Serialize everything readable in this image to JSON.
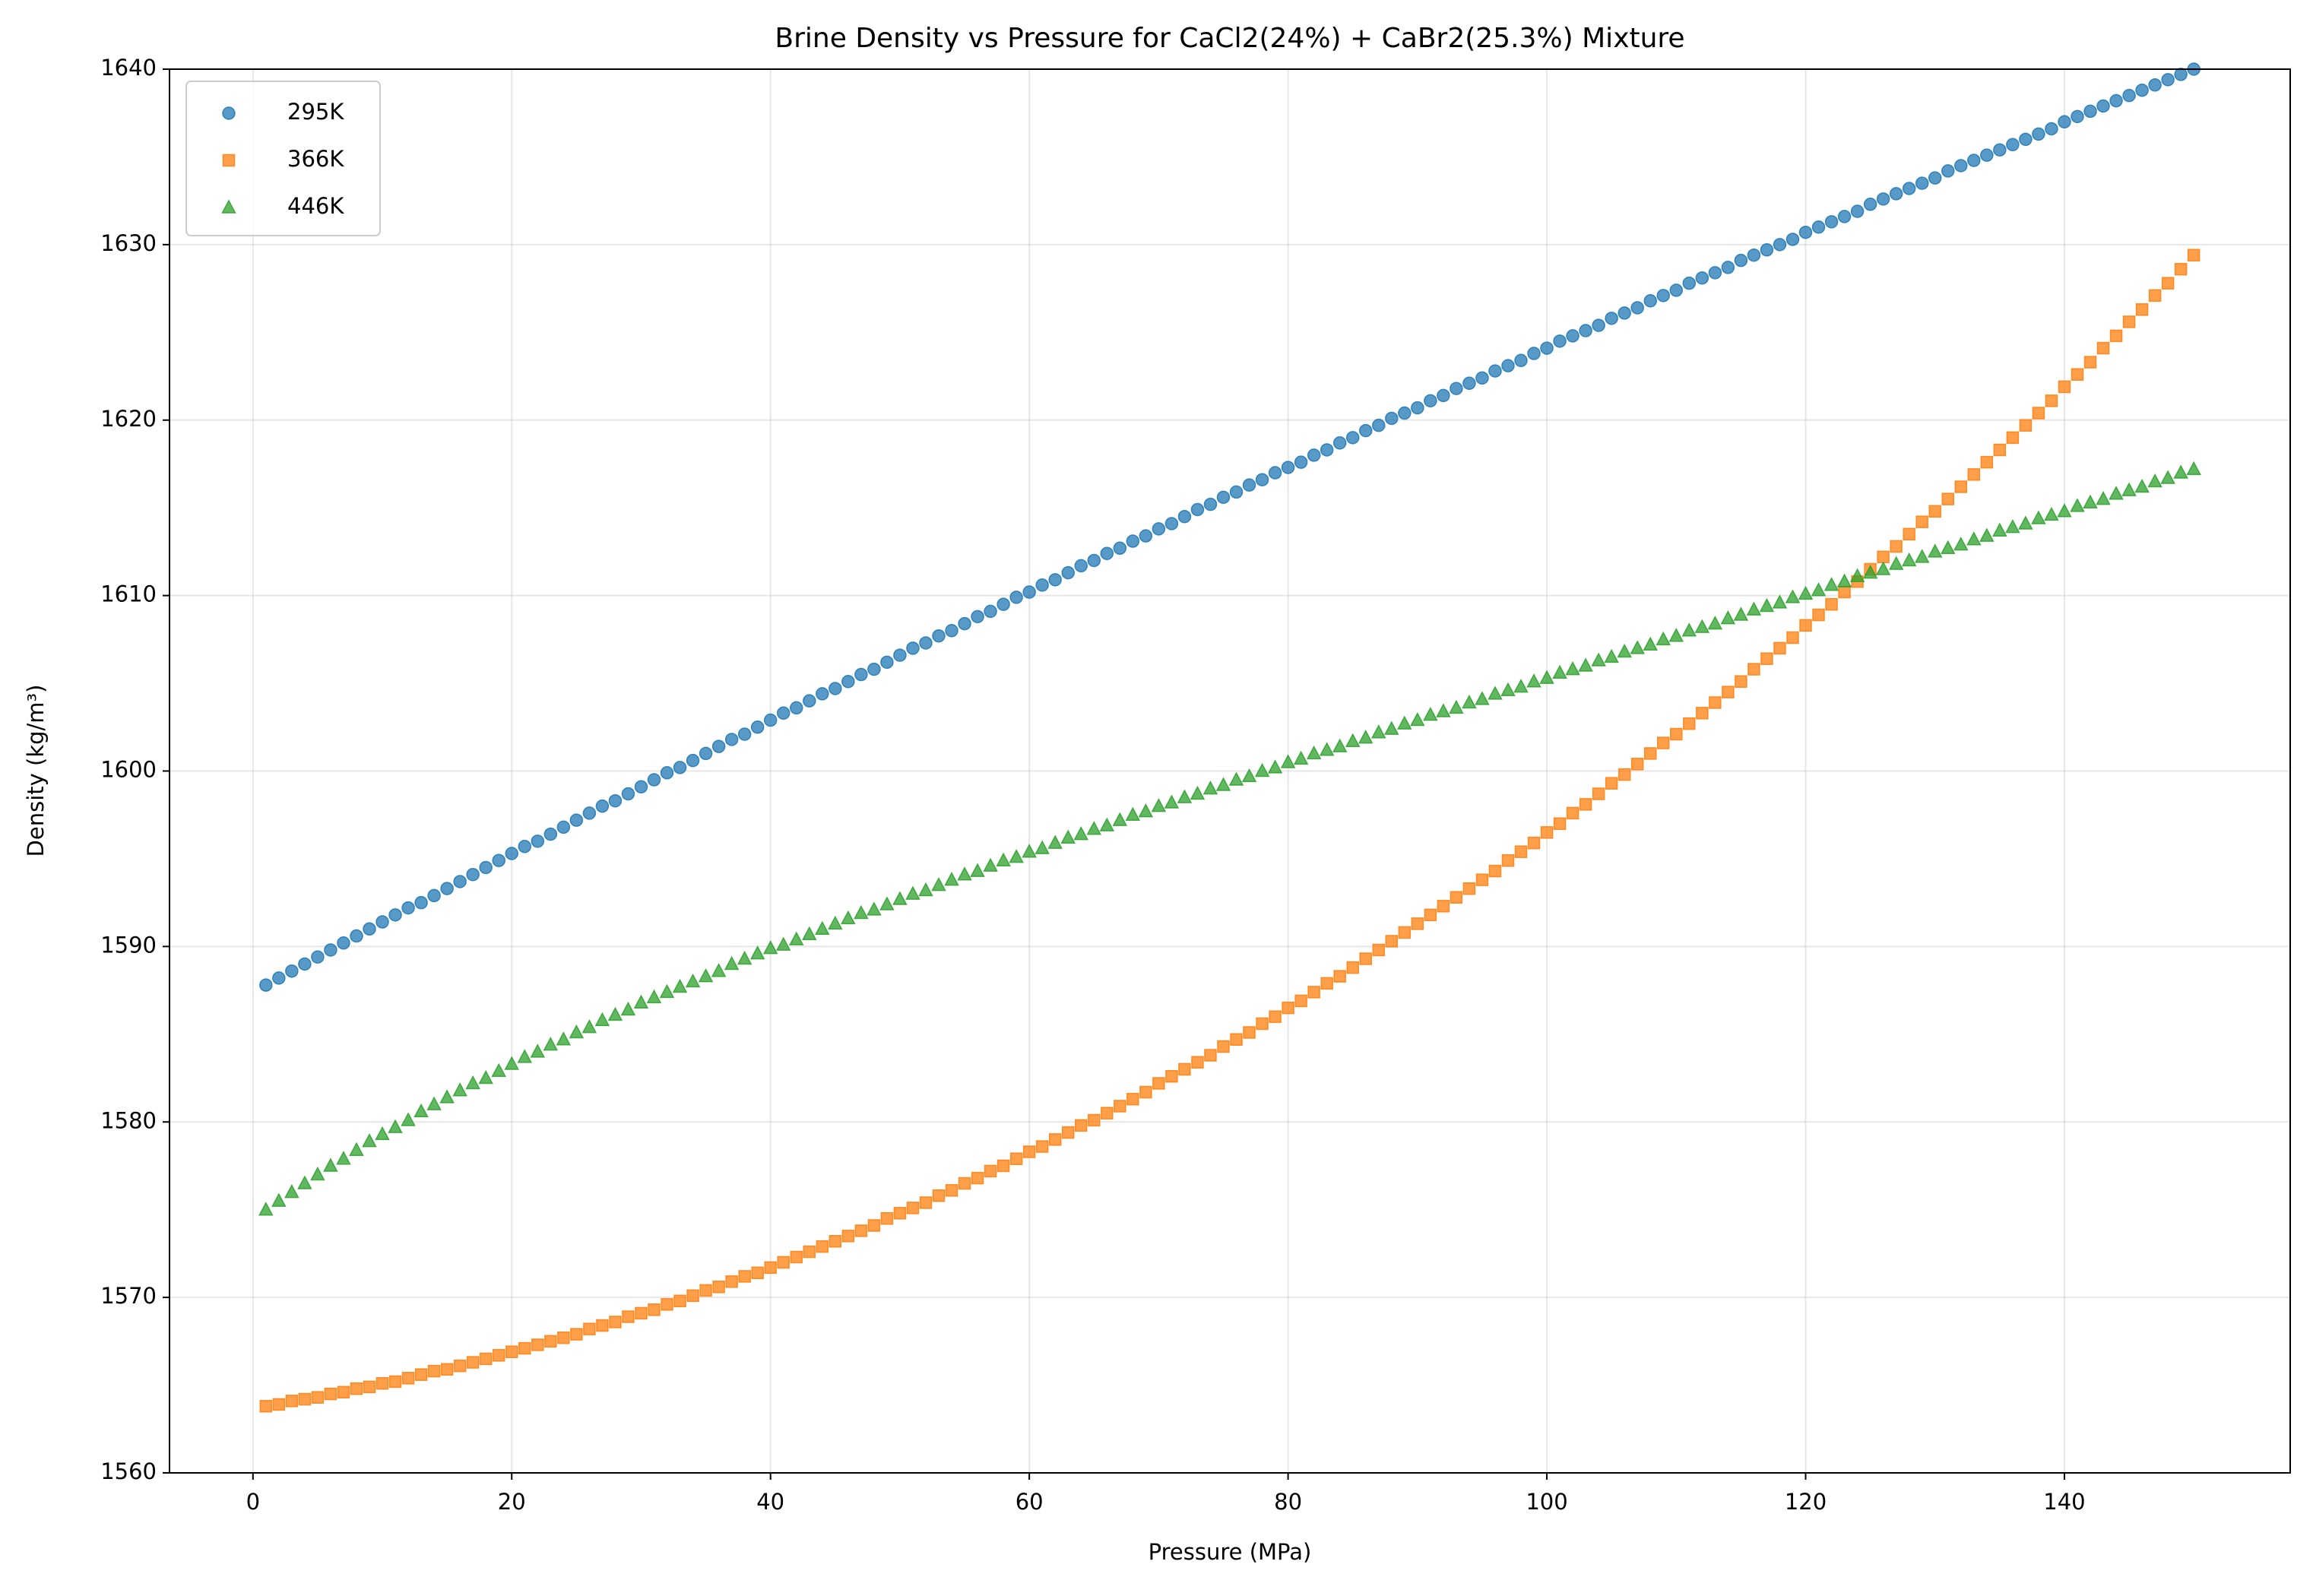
{
  "chart_data": {
    "type": "scatter",
    "title": "Brine Density vs Pressure for CaCl2(24%) + CaBr2(25.3%) Mixture",
    "x_label": "Pressure (MPa)",
    "y_label": "Density (kg/m³)",
    "x": [
      1,
      2,
      3,
      4,
      5,
      6,
      7,
      8,
      9,
      10,
      11,
      12,
      13,
      14,
      15,
      16,
      17,
      18,
      19,
      20,
      21,
      22,
      23,
      24,
      25,
      26,
      27,
      28,
      29,
      30,
      31,
      32,
      33,
      34,
      35,
      36,
      37,
      38,
      39,
      40,
      41,
      42,
      43,
      44,
      45,
      46,
      47,
      48,
      49,
      50,
      51,
      52,
      53,
      54,
      55,
      56,
      57,
      58,
      59,
      60,
      61,
      62,
      63,
      64,
      65,
      66,
      67,
      68,
      69,
      70,
      71,
      72,
      73,
      74,
      75,
      76,
      77,
      78,
      79,
      80,
      81,
      82,
      83,
      84,
      85,
      86,
      87,
      88,
      89,
      90,
      91,
      92,
      93,
      94,
      95,
      96,
      97,
      98,
      99,
      100,
      101,
      102,
      103,
      104,
      105,
      106,
      107,
      108,
      109,
      110,
      111,
      112,
      113,
      114,
      115,
      116,
      117,
      118,
      119,
      120,
      121,
      122,
      123,
      124,
      125,
      126,
      127,
      128,
      129,
      130,
      131,
      132,
      133,
      134,
      135,
      136,
      137,
      138,
      139,
      140,
      141,
      142,
      143,
      144,
      145,
      146,
      147,
      148,
      149,
      150
    ],
    "series": [
      {
        "name": "295K",
        "color": "#1f77b4",
        "marker": "circle",
        "values": [
          1587.8,
          1588.2,
          1588.6,
          1589.0,
          1589.4,
          1589.8,
          1590.2,
          1590.6,
          1591.0,
          1591.4,
          1591.8,
          1592.2,
          1592.5,
          1592.9,
          1593.3,
          1593.7,
          1594.1,
          1594.5,
          1594.9,
          1595.3,
          1595.7,
          1596.0,
          1596.4,
          1596.8,
          1597.2,
          1597.6,
          1598.0,
          1598.3,
          1598.7,
          1599.1,
          1599.5,
          1599.9,
          1600.2,
          1600.6,
          1601.0,
          1601.4,
          1601.8,
          1602.1,
          1602.5,
          1602.9,
          1603.3,
          1603.6,
          1604.0,
          1604.4,
          1604.7,
          1605.1,
          1605.5,
          1605.8,
          1606.2,
          1606.6,
          1607.0,
          1607.3,
          1607.7,
          1608.0,
          1608.4,
          1608.8,
          1609.1,
          1609.5,
          1609.9,
          1610.2,
          1610.6,
          1610.9,
          1611.3,
          1611.7,
          1612.0,
          1612.4,
          1612.7,
          1613.1,
          1613.4,
          1613.8,
          1614.1,
          1614.5,
          1614.9,
          1615.2,
          1615.6,
          1615.9,
          1616.3,
          1616.6,
          1617.0,
          1617.3,
          1617.6,
          1618.0,
          1618.3,
          1618.7,
          1619.0,
          1619.4,
          1619.7,
          1620.1,
          1620.4,
          1620.7,
          1621.1,
          1621.4,
          1621.8,
          1622.1,
          1622.4,
          1622.8,
          1623.1,
          1623.4,
          1623.8,
          1624.1,
          1624.5,
          1624.8,
          1625.1,
          1625.4,
          1625.8,
          1626.1,
          1626.4,
          1626.8,
          1627.1,
          1627.4,
          1627.8,
          1628.1,
          1628.4,
          1628.7,
          1629.1,
          1629.4,
          1629.7,
          1630.0,
          1630.3,
          1630.7,
          1631.0,
          1631.3,
          1631.6,
          1631.9,
          1632.3,
          1632.6,
          1632.9,
          1633.2,
          1633.5,
          1633.8,
          1634.2,
          1634.5,
          1634.8,
          1635.1,
          1635.4,
          1635.7,
          1636.0,
          1636.3,
          1636.6,
          1637.0,
          1637.3,
          1637.6,
          1637.9,
          1638.2,
          1638.5,
          1638.8,
          1639.1,
          1639.4,
          1639.7,
          1640.0
        ]
      },
      {
        "name": "366K",
        "color": "#ff7f0e",
        "marker": "square",
        "values": [
          1563.8,
          1563.9,
          1564.1,
          1564.2,
          1564.3,
          1564.5,
          1564.6,
          1564.8,
          1564.9,
          1565.1,
          1565.2,
          1565.4,
          1565.6,
          1565.8,
          1565.9,
          1566.1,
          1566.3,
          1566.5,
          1566.7,
          1566.9,
          1567.1,
          1567.3,
          1567.5,
          1567.7,
          1567.9,
          1568.2,
          1568.4,
          1568.6,
          1568.9,
          1569.1,
          1569.3,
          1569.6,
          1569.8,
          1570.1,
          1570.4,
          1570.6,
          1570.9,
          1571.2,
          1571.4,
          1571.7,
          1572.0,
          1572.3,
          1572.6,
          1572.9,
          1573.2,
          1573.5,
          1573.8,
          1574.1,
          1574.5,
          1574.8,
          1575.1,
          1575.4,
          1575.8,
          1576.1,
          1576.5,
          1576.8,
          1577.2,
          1577.5,
          1577.9,
          1578.3,
          1578.6,
          1579.0,
          1579.4,
          1579.8,
          1580.1,
          1580.5,
          1580.9,
          1581.3,
          1581.7,
          1582.2,
          1582.6,
          1583.0,
          1583.4,
          1583.8,
          1584.3,
          1584.7,
          1585.1,
          1585.6,
          1586.0,
          1586.5,
          1586.9,
          1587.4,
          1587.9,
          1588.3,
          1588.8,
          1589.3,
          1589.8,
          1590.3,
          1590.8,
          1591.3,
          1591.8,
          1592.3,
          1592.8,
          1593.3,
          1593.8,
          1594.3,
          1594.9,
          1595.4,
          1595.9,
          1596.5,
          1597.0,
          1597.6,
          1598.1,
          1598.7,
          1599.3,
          1599.8,
          1600.4,
          1601.0,
          1601.6,
          1602.1,
          1602.7,
          1603.3,
          1603.9,
          1604.5,
          1605.1,
          1605.8,
          1606.4,
          1607.0,
          1607.6,
          1608.3,
          1608.9,
          1609.5,
          1610.2,
          1610.8,
          1611.5,
          1612.2,
          1612.8,
          1613.5,
          1614.2,
          1614.8,
          1615.5,
          1616.2,
          1616.9,
          1617.6,
          1618.3,
          1619.0,
          1619.7,
          1620.4,
          1621.1,
          1621.9,
          1622.6,
          1623.3,
          1624.1,
          1624.8,
          1625.6,
          1626.3,
          1627.1,
          1627.8,
          1628.6,
          1629.4
        ]
      },
      {
        "name": "446K",
        "color": "#2ca02c",
        "marker": "triangle",
        "values": [
          1575.0,
          1575.5,
          1576.0,
          1576.5,
          1577.0,
          1577.5,
          1577.9,
          1578.4,
          1578.9,
          1579.3,
          1579.7,
          1580.1,
          1580.6,
          1581.0,
          1581.4,
          1581.8,
          1582.2,
          1582.5,
          1582.9,
          1583.3,
          1583.7,
          1584.0,
          1584.4,
          1584.7,
          1585.1,
          1585.4,
          1585.8,
          1586.1,
          1586.4,
          1586.8,
          1587.1,
          1587.4,
          1587.7,
          1588.0,
          1588.3,
          1588.6,
          1589.0,
          1589.3,
          1589.6,
          1589.9,
          1590.1,
          1590.4,
          1590.7,
          1591.0,
          1591.3,
          1591.6,
          1591.9,
          1592.1,
          1592.4,
          1592.7,
          1593.0,
          1593.2,
          1593.5,
          1593.8,
          1594.1,
          1594.3,
          1594.6,
          1594.9,
          1595.1,
          1595.4,
          1595.6,
          1595.9,
          1596.2,
          1596.4,
          1596.7,
          1596.9,
          1597.2,
          1597.5,
          1597.7,
          1598.0,
          1598.2,
          1598.5,
          1598.7,
          1599.0,
          1599.2,
          1599.5,
          1599.7,
          1600.0,
          1600.2,
          1600.5,
          1600.7,
          1601.0,
          1601.2,
          1601.4,
          1601.7,
          1601.9,
          1602.2,
          1602.4,
          1602.7,
          1602.9,
          1603.2,
          1603.4,
          1603.6,
          1603.9,
          1604.1,
          1604.4,
          1604.6,
          1604.8,
          1605.1,
          1605.3,
          1605.6,
          1605.8,
          1606.0,
          1606.3,
          1606.5,
          1606.8,
          1607.0,
          1607.2,
          1607.5,
          1607.7,
          1608.0,
          1608.2,
          1608.4,
          1608.7,
          1608.9,
          1609.2,
          1609.4,
          1609.6,
          1609.9,
          1610.1,
          1610.3,
          1610.6,
          1610.8,
          1611.1,
          1611.3,
          1611.5,
          1611.8,
          1612.0,
          1612.2,
          1612.5,
          1612.7,
          1612.9,
          1613.2,
          1613.4,
          1613.7,
          1613.9,
          1614.1,
          1614.4,
          1614.6,
          1614.8,
          1615.1,
          1615.3,
          1615.5,
          1615.8,
          1616.0,
          1616.2,
          1616.5,
          1616.7,
          1617.0,
          1617.2
        ]
      }
    ],
    "xlim": [
      -6.45,
      157.45
    ],
    "xticks": [
      0,
      20,
      40,
      60,
      80,
      100,
      120,
      140
    ],
    "ylim": [
      1560,
      1640
    ],
    "yticks": [
      1560,
      1570,
      1580,
      1590,
      1600,
      1610,
      1620,
      1630,
      1640
    ],
    "grid": true,
    "legend": "upper left"
  }
}
